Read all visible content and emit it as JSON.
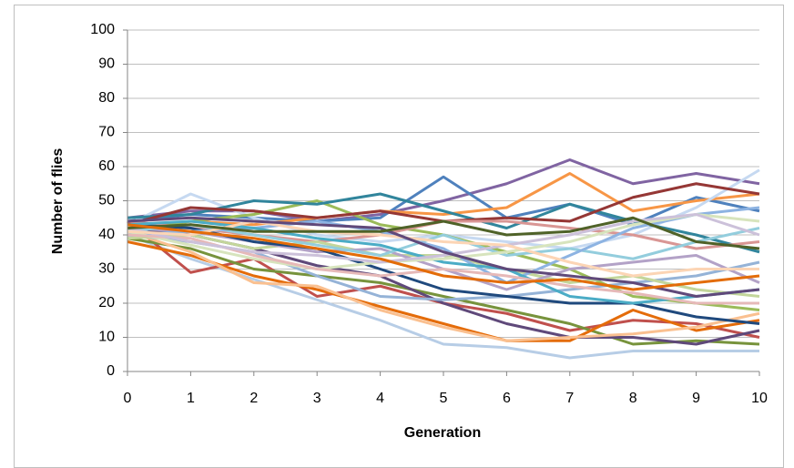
{
  "chart_data": {
    "type": "line",
    "x_label": "Generation",
    "y_label": "Number of flies",
    "x": [
      0,
      1,
      2,
      3,
      4,
      5,
      6,
      7,
      8,
      9,
      10
    ],
    "xlim": [
      0,
      10
    ],
    "xticks": [
      0,
      1,
      2,
      3,
      4,
      5,
      6,
      7,
      8,
      9,
      10
    ],
    "ylim": [
      0,
      100
    ],
    "yticks": [
      0,
      10,
      20,
      30,
      40,
      50,
      60,
      70,
      80,
      90,
      100
    ],
    "grid": true,
    "series": [
      {
        "color": "#8064a2",
        "values": [
          45,
          47,
          47,
          44,
          46,
          50,
          55,
          62,
          55,
          58,
          55
        ]
      },
      {
        "color": "#4f81bd",
        "values": [
          44,
          46,
          45,
          44,
          45,
          57,
          45,
          49,
          43,
          51,
          47
        ]
      },
      {
        "color": "#f79646",
        "values": [
          42,
          44,
          43,
          45,
          47,
          46,
          48,
          58,
          47,
          50,
          52
        ]
      },
      {
        "color": "#b7cde6",
        "values": [
          40,
          33,
          27,
          21,
          15,
          8,
          7,
          4,
          6,
          6,
          6
        ]
      },
      {
        "color": "#c6d9f1",
        "values": [
          43,
          52,
          45,
          40,
          38,
          40,
          38,
          36,
          40,
          48,
          59
        ]
      },
      {
        "color": "#9bbb59",
        "values": [
          41,
          44,
          46,
          50,
          43,
          40,
          35,
          30,
          22,
          20,
          18
        ]
      },
      {
        "color": "#31859c",
        "values": [
          45,
          46,
          50,
          49,
          52,
          47,
          42,
          49,
          44,
          40,
          35
        ]
      },
      {
        "color": "#c0504d",
        "values": [
          44,
          29,
          33,
          22,
          25,
          20,
          17,
          12,
          15,
          14,
          10
        ]
      },
      {
        "color": "#953735",
        "values": [
          43,
          48,
          47,
          45,
          47,
          44,
          45,
          44,
          51,
          55,
          52
        ]
      },
      {
        "color": "#77933c",
        "values": [
          39,
          36,
          30,
          28,
          26,
          22,
          18,
          14,
          8,
          9,
          8
        ]
      },
      {
        "color": "#5f497a",
        "values": [
          42,
          40,
          36,
          31,
          28,
          20,
          14,
          10,
          10,
          8,
          12
        ]
      },
      {
        "color": "#e46c0a",
        "values": [
          38,
          34,
          28,
          24,
          19,
          14,
          9,
          9,
          18,
          12,
          15
        ]
      },
      {
        "color": "#fac090",
        "values": [
          41,
          35,
          26,
          25,
          18,
          13,
          9,
          10,
          11,
          13,
          17
        ]
      },
      {
        "color": "#95b3d7",
        "values": [
          40,
          38,
          35,
          28,
          22,
          21,
          22,
          24,
          26,
          28,
          32
        ]
      },
      {
        "color": "#d99694",
        "values": [
          44,
          42,
          40,
          38,
          40,
          44,
          44,
          42,
          40,
          36,
          38
        ]
      },
      {
        "color": "#c3d69b",
        "values": [
          39,
          40,
          36,
          38,
          34,
          34,
          30,
          26,
          28,
          24,
          22
        ]
      },
      {
        "color": "#b3a2c7",
        "values": [
          42,
          41,
          38,
          35,
          36,
          30,
          24,
          30,
          32,
          34,
          26
        ]
      },
      {
        "color": "#93cddd",
        "values": [
          41,
          43,
          40,
          37,
          34,
          40,
          34,
          36,
          33,
          38,
          42
        ]
      },
      {
        "color": "#1f497d",
        "values": [
          43,
          42,
          38,
          36,
          30,
          24,
          22,
          20,
          20,
          16,
          14
        ]
      },
      {
        "color": "#8db3e2",
        "values": [
          40,
          41,
          42,
          44,
          41,
          36,
          26,
          34,
          42,
          46,
          48
        ]
      },
      {
        "color": "#4bacc6",
        "values": [
          43,
          44,
          42,
          39,
          37,
          32,
          30,
          22,
          20,
          22,
          24
        ]
      },
      {
        "color": "#d7e4bd",
        "values": [
          41,
          37,
          33,
          30,
          32,
          33,
          35,
          38,
          43,
          46,
          44
        ]
      },
      {
        "color": "#e6b9b8",
        "values": [
          40,
          39,
          34,
          30,
          28,
          30,
          28,
          25,
          23,
          20,
          20
        ]
      },
      {
        "color": "#ccc1da",
        "values": [
          42,
          38,
          35,
          34,
          32,
          34,
          37,
          40,
          44,
          46,
          40
        ]
      },
      {
        "color": "#fcd5b5",
        "values": [
          41,
          40,
          44,
          41,
          40,
          38,
          37,
          32,
          28,
          30,
          30
        ]
      },
      {
        "color": "#60497a",
        "values": [
          44,
          45,
          44,
          43,
          42,
          35,
          30,
          28,
          26,
          22,
          24
        ]
      },
      {
        "color": "#4f6228",
        "values": [
          42,
          43,
          41,
          41,
          41,
          44,
          40,
          41,
          45,
          38,
          36
        ]
      },
      {
        "color": "#e36c09",
        "values": [
          43,
          41,
          39,
          36,
          33,
          28,
          26,
          27,
          24,
          26,
          28
        ]
      }
    ]
  }
}
